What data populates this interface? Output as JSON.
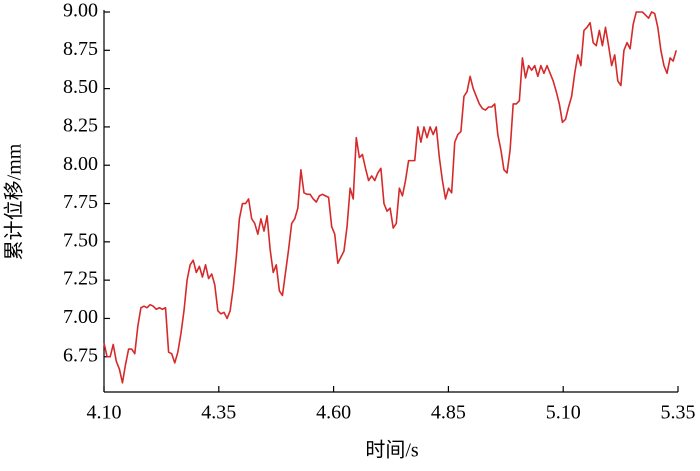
{
  "chart_data": {
    "type": "line",
    "x_label": "时间/s",
    "y_label": "累计位移/mm",
    "color": "#d62a2a",
    "xlim": [
      4.1,
      5.35
    ],
    "ylim": [
      6.52,
      9.0
    ],
    "xticks": [
      {
        "value": 4.1,
        "label": "4.10"
      },
      {
        "value": 4.35,
        "label": "4.35"
      },
      {
        "value": 4.6,
        "label": "4.60"
      },
      {
        "value": 4.85,
        "label": "4.85"
      },
      {
        "value": 5.1,
        "label": "5.10"
      },
      {
        "value": 5.35,
        "label": "5.35"
      }
    ],
    "yticks": [
      {
        "value": 6.75,
        "label": "6.75"
      },
      {
        "value": 7.0,
        "label": "7.00"
      },
      {
        "value": 7.25,
        "label": "7.25"
      },
      {
        "value": 7.5,
        "label": "7.50"
      },
      {
        "value": 7.75,
        "label": "7.75"
      },
      {
        "value": 8.0,
        "label": "8.00"
      },
      {
        "value": 8.25,
        "label": "8.25"
      },
      {
        "value": 8.5,
        "label": "8.50"
      },
      {
        "value": 8.75,
        "label": "8.75"
      },
      {
        "value": 9.0,
        "label": "9.00"
      }
    ],
    "x": [
      4.1,
      4.1067,
      4.1134,
      4.1201,
      4.1268,
      4.1335,
      4.1402,
      4.1469,
      4.1536,
      4.1603,
      4.167,
      4.1737,
      4.1804,
      4.1871,
      4.1938,
      4.2005,
      4.2072,
      4.2139,
      4.2206,
      4.2273,
      4.234,
      4.2407,
      4.2474,
      4.2541,
      4.2608,
      4.2675,
      4.2742,
      4.2809,
      4.2876,
      4.2943,
      4.301,
      4.3077,
      4.3144,
      4.3211,
      4.3278,
      4.3345,
      4.3412,
      4.3479,
      4.3546,
      4.3613,
      4.368,
      4.3747,
      4.3814,
      4.3881,
      4.3948,
      4.4015,
      4.4082,
      4.4149,
      4.4216,
      4.4283,
      4.435,
      4.4417,
      4.4484,
      4.4551,
      4.4618,
      4.4685,
      4.4752,
      4.4819,
      4.4886,
      4.4953,
      4.502,
      4.5087,
      4.5154,
      4.5221,
      4.5288,
      4.5355,
      4.5422,
      4.5489,
      4.5556,
      4.5623,
      4.569,
      4.5757,
      4.5824,
      4.5891,
      4.5958,
      4.6025,
      4.6092,
      4.6159,
      4.6226,
      4.6293,
      4.636,
      4.6427,
      4.6494,
      4.6561,
      4.6628,
      4.6695,
      4.6762,
      4.6829,
      4.6896,
      4.6963,
      4.703,
      4.7097,
      4.7164,
      4.7231,
      4.7298,
      4.7365,
      4.7432,
      4.7499,
      4.7566,
      4.7633,
      4.77,
      4.7767,
      4.7834,
      4.7901,
      4.7968,
      4.8035,
      4.8102,
      4.8169,
      4.8236,
      4.8303,
      4.837,
      4.8437,
      4.8504,
      4.8571,
      4.8638,
      4.8705,
      4.8772,
      4.8839,
      4.8906,
      4.8973,
      4.904,
      4.9107,
      4.9174,
      4.9241,
      4.9308,
      4.9375,
      4.9442,
      4.9509,
      4.9576,
      4.9643,
      4.971,
      4.9777,
      4.9844,
      4.9911,
      4.9978,
      5.0045,
      5.0112,
      5.0179,
      5.0246,
      5.0313,
      5.038,
      5.0447,
      5.0514,
      5.0581,
      5.0648,
      5.0715,
      5.0782,
      5.0849,
      5.0916,
      5.0983,
      5.105,
      5.1117,
      5.1184,
      5.1251,
      5.1318,
      5.1385,
      5.1452,
      5.1519,
      5.1586,
      5.1653,
      5.172,
      5.1787,
      5.1854,
      5.1921,
      5.1988,
      5.2055,
      5.2122,
      5.2189,
      5.2256,
      5.2323,
      5.239,
      5.2457,
      5.2524,
      5.2591,
      5.2658,
      5.2725,
      5.2792,
      5.2859,
      5.2926,
      5.2993,
      5.306,
      5.3127,
      5.3194,
      5.3261,
      5.3328,
      5.3395,
      5.3462
    ],
    "values": [
      6.84,
      6.75,
      6.75,
      6.83,
      6.72,
      6.67,
      6.58,
      6.7,
      6.8,
      6.8,
      6.77,
      6.95,
      7.07,
      7.08,
      7.07,
      7.09,
      7.08,
      7.06,
      7.07,
      7.06,
      7.07,
      6.78,
      6.77,
      6.71,
      6.78,
      6.9,
      7.05,
      7.25,
      7.35,
      7.38,
      7.3,
      7.34,
      7.27,
      7.35,
      7.26,
      7.29,
      7.22,
      7.05,
      7.03,
      7.04,
      7.0,
      7.05,
      7.2,
      7.4,
      7.65,
      7.75,
      7.75,
      7.78,
      7.65,
      7.62,
      7.55,
      7.65,
      7.57,
      7.67,
      7.45,
      7.3,
      7.35,
      7.18,
      7.15,
      7.3,
      7.45,
      7.62,
      7.65,
      7.72,
      7.97,
      7.82,
      7.81,
      7.81,
      7.78,
      7.76,
      7.8,
      7.81,
      7.8,
      7.79,
      7.6,
      7.55,
      7.36,
      7.4,
      7.44,
      7.6,
      7.85,
      7.78,
      8.18,
      8.05,
      8.07,
      7.98,
      7.9,
      7.93,
      7.9,
      7.95,
      7.98,
      7.75,
      7.7,
      7.72,
      7.59,
      7.62,
      7.85,
      7.8,
      7.9,
      8.03,
      8.03,
      8.03,
      8.25,
      8.15,
      8.25,
      8.18,
      8.25,
      8.2,
      8.25,
      8.05,
      7.9,
      7.78,
      7.85,
      7.82,
      8.15,
      8.2,
      8.22,
      8.45,
      8.48,
      8.58,
      8.5,
      8.45,
      8.4,
      8.37,
      8.36,
      8.38,
      8.38,
      8.4,
      8.2,
      8.1,
      7.97,
      7.95,
      8.1,
      8.4,
      8.4,
      8.42,
      8.7,
      8.57,
      8.65,
      8.62,
      8.65,
      8.58,
      8.65,
      8.6,
      8.65,
      8.6,
      8.55,
      8.48,
      8.4,
      8.28,
      8.3,
      8.38,
      8.45,
      8.6,
      8.72,
      8.65,
      8.88,
      8.9,
      8.93,
      8.8,
      8.78,
      8.88,
      8.78,
      8.9,
      8.78,
      8.65,
      8.72,
      8.55,
      8.52,
      8.75,
      8.8,
      8.76,
      8.92,
      9.0,
      9.0,
      9.0,
      8.98,
      8.96,
      9.0,
      8.99,
      8.9,
      8.75,
      8.65,
      8.6,
      8.7,
      8.68,
      8.75
    ]
  }
}
